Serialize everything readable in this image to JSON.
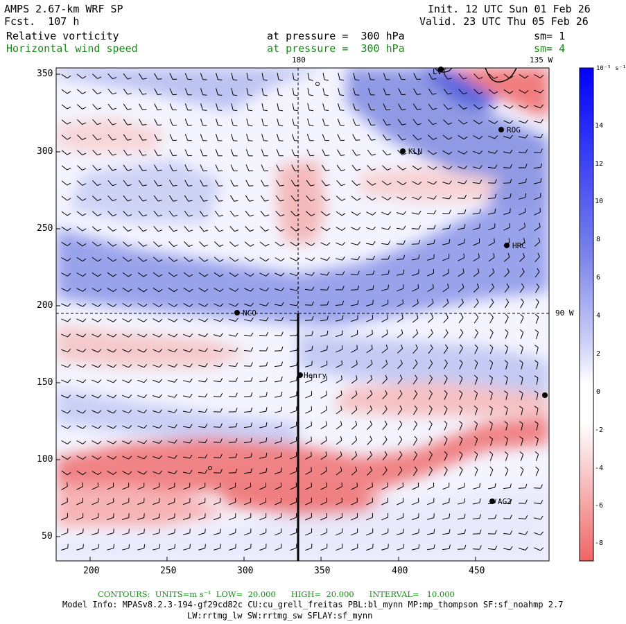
{
  "header": {
    "model": "AMPS 2.67-km WRF SP",
    "forecast": "Fcst.  107 h",
    "init": "Init. 12 UTC Sun 01 Feb 26",
    "valid": "Valid. 23 UTC Thu 05 Feb 26",
    "field1": {
      "name": "Relative vorticity",
      "level": "at pressure =  300 hPa",
      "sm": "sm= 1"
    },
    "field2": {
      "name": "Horizontal wind speed",
      "level": "at pressure =  300 hPa",
      "sm": "sm= 4"
    }
  },
  "map": {
    "meridian_labels": {
      "top_center": "180",
      "top_right": "135 W",
      "right_mid": "90 W"
    },
    "x_ticks": [
      "200",
      "250",
      "300",
      "350",
      "400",
      "450"
    ],
    "y_ticks": [
      "350",
      "300",
      "250",
      "200",
      "150",
      "100",
      "50"
    ],
    "stations": [
      {
        "label": "LVT"
      },
      {
        "label": "ROG"
      },
      {
        "label": "KLN"
      },
      {
        "label": "HRC"
      },
      {
        "label": "NCO"
      },
      {
        "label": "Henry"
      },
      {
        "label": "AG2"
      },
      {
        "label": ""
      }
    ]
  },
  "colorbar": {
    "units": "10⁻⁵ s⁻¹",
    "labels": [
      "14",
      "12",
      "10",
      "8",
      "6",
      "4",
      "2",
      "0",
      "-2",
      "-4",
      "-6",
      "-8"
    ],
    "colors": {
      "positive": "#0000ff",
      "negative": "#ff3333",
      "neutral": "#ffffff"
    }
  },
  "footer": {
    "contours": "CONTOURS:  UNITS=m s⁻¹  LOW=  20.000      HIGH=  20.000      INTERVAL=   10.000",
    "model_info": "Model Info: MPASv8.2.3-194-gf29cd82c CU:cu_grell_freitas PBL:bl_mynn MP:mp_thompson SF:sf_noahmp 2.7",
    "physics": "LW:rrtmg_lw SW:rrtmg_sw SFLAY:sf_mynn"
  }
}
